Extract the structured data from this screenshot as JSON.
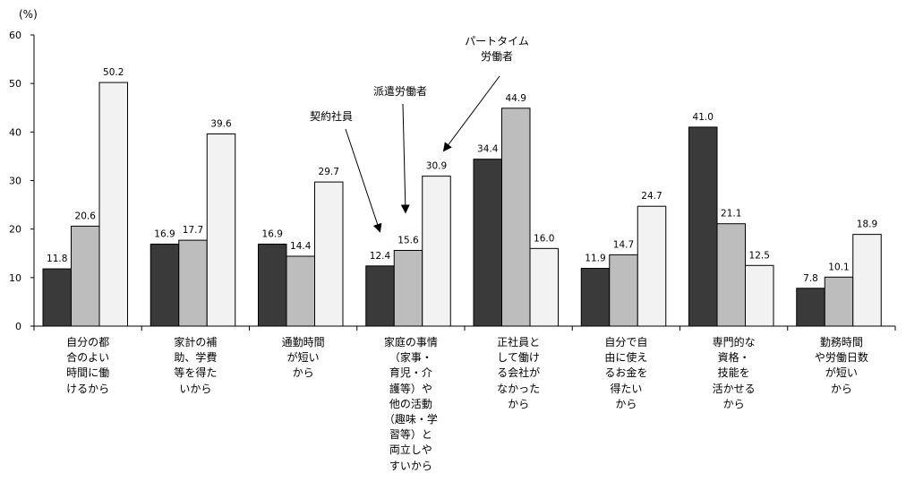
{
  "chart_data": {
    "type": "bar",
    "unit_label": "(%)",
    "ylim": [
      0,
      60
    ],
    "yticks": [
      "0",
      "10",
      "20",
      "30",
      "40",
      "50",
      "60"
    ],
    "categories": [
      [
        "自分の都",
        "合のよい",
        "時間に働",
        "けるから"
      ],
      [
        "家計の補",
        "助、学費",
        "等を得た",
        "いから"
      ],
      [
        "通勤時間",
        "が短い",
        "から"
      ],
      [
        "家庭の事情",
        "（家事・",
        "育児・介",
        "護等）や",
        "他の活動",
        "（趣味・学",
        "習等）と",
        "両立しや",
        "すいから"
      ],
      [
        "正社員と",
        "して働け",
        "る会社が",
        "なかった",
        "から"
      ],
      [
        "自分で自",
        "由に使え",
        "るお金を",
        "得たい",
        "から"
      ],
      [
        "専門的な",
        "資格・",
        "技能を",
        "活かせる",
        "から"
      ],
      [
        "勤務時間",
        "や労働日数",
        "が短い",
        "から"
      ]
    ],
    "series": [
      {
        "name": "契約社員",
        "color": "#3a3a3a",
        "values": [
          11.8,
          16.9,
          16.9,
          12.4,
          34.4,
          11.9,
          41.0,
          7.8
        ]
      },
      {
        "name": "派遣労働者",
        "color": "#bdbdbd",
        "values": [
          20.6,
          17.7,
          14.4,
          15.6,
          44.9,
          14.7,
          21.1,
          10.1
        ]
      },
      {
        "name": "パートタイム労働者",
        "color": "#f2f2f2",
        "values": [
          50.2,
          39.6,
          29.7,
          30.9,
          16.0,
          24.7,
          12.5,
          18.9
        ]
      }
    ],
    "value_labels": [
      [
        "11.8",
        "16.9",
        "16.9",
        "12.4",
        "34.4",
        "11.9",
        "41.0",
        "7.8"
      ],
      [
        "20.6",
        "17.7",
        "14.4",
        "15.6",
        "44.9",
        "14.7",
        "21.1",
        "10.1"
      ],
      [
        "50.2",
        "39.6",
        "29.7",
        "30.9",
        "16.0",
        "24.7",
        "12.5",
        "18.9"
      ]
    ],
    "annotations": [
      {
        "lines": [
          "契約社員"
        ],
        "series": 0,
        "category": 3
      },
      {
        "lines": [
          "派遣労働者"
        ],
        "series": 1,
        "category": 3
      },
      {
        "lines": [
          "パートタイム",
          "労働者"
        ],
        "series": 2,
        "category": 3
      }
    ]
  }
}
